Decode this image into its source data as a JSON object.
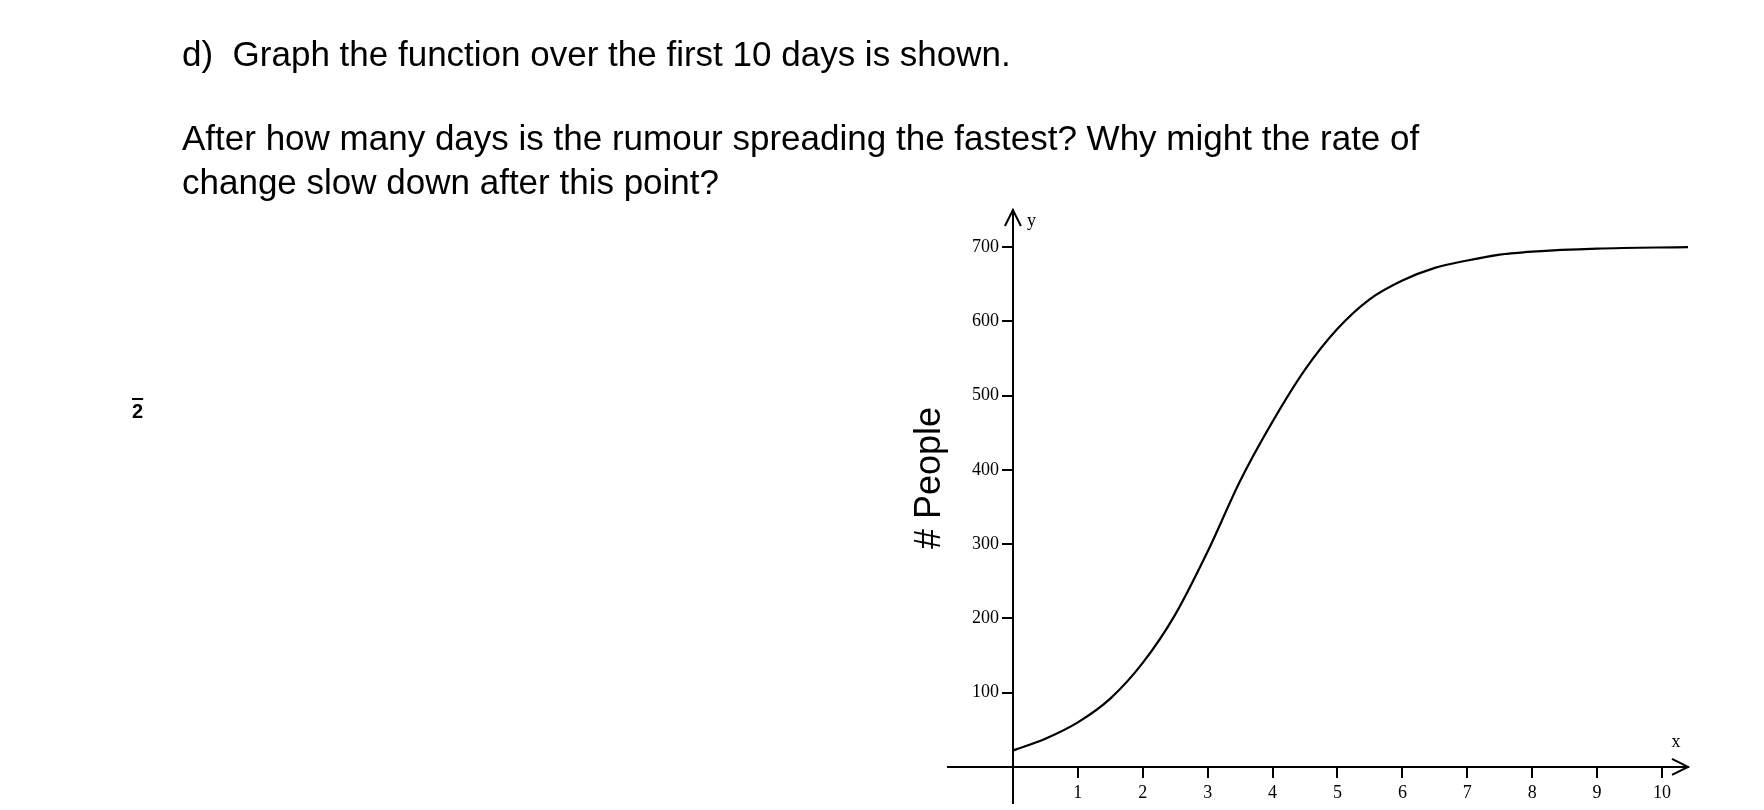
{
  "chart_data": {
    "type": "line",
    "title": "d)  Graph the function over the first 10 days is shown.",
    "subtitle": "After how many days is the rumour spreading the fastest? Why might the rate of change slow down after this point?",
    "xlabel": "x",
    "ylabel": "# People",
    "annotations": [
      "y",
      "2"
    ],
    "x": [
      0,
      0.5,
      1,
      1.5,
      2,
      2.5,
      3,
      3.5,
      4,
      4.5,
      5,
      5.5,
      6,
      6.5,
      7,
      7.5,
      8,
      9,
      10.4
    ],
    "series": [
      {
        "color": "#000000",
        "values": [
          22,
          38,
          60,
          92,
          140,
          205,
          290,
          385,
          465,
          535,
          590,
          630,
          655,
          672,
          682,
          690,
          694,
          698,
          700
        ]
      }
    ],
    "xlim": [
      -1,
      10.4
    ],
    "ylim": [
      -50,
      750
    ],
    "xticks": [
      1,
      2,
      3,
      4,
      5,
      6,
      7,
      8,
      9,
      10
    ],
    "yticks": [
      100,
      200,
      300,
      400,
      500,
      600,
      700
    ],
    "grid": false,
    "legend": false,
    "marker": "none",
    "line_style": "solid"
  }
}
